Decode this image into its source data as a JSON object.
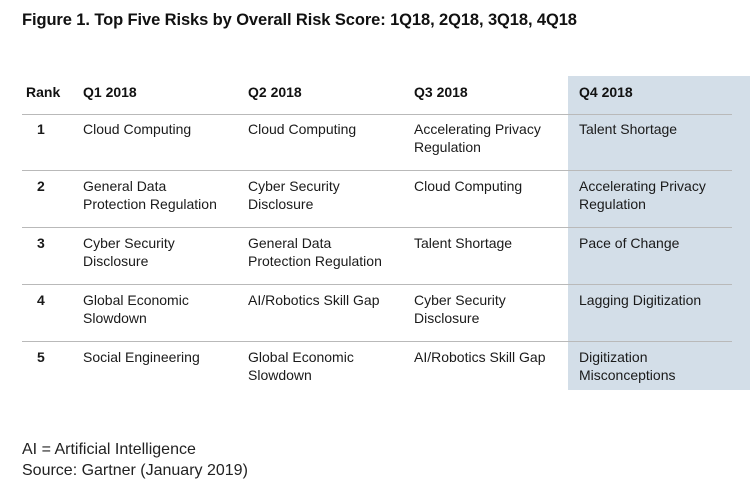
{
  "title": "Figure 1. Top Five Risks by Overall Risk Score: 1Q18, 2Q18, 3Q18, 4Q18",
  "table": {
    "headers": [
      "Rank",
      "Q1 2018",
      "Q2 2018",
      "Q3 2018",
      "Q4 2018"
    ],
    "highlight_color": "#d3dee8",
    "rows": [
      {
        "rank": "1",
        "cells": [
          "Cloud Computing",
          "Cloud Computing",
          "Accelerating Privacy Regulation",
          "Talent Shortage"
        ]
      },
      {
        "rank": "2",
        "cells": [
          "General Data Protection Regulation",
          "Cyber Security Disclosure",
          "Cloud Computing",
          "Accelerating Privacy Regulation"
        ]
      },
      {
        "rank": "3",
        "cells": [
          "Cyber Security Disclosure",
          "General Data Protection Regulation",
          "Talent Shortage",
          "Pace of Change"
        ]
      },
      {
        "rank": "4",
        "cells": [
          "Global Economic Slowdown",
          "AI/Robotics Skill Gap",
          "Cyber Security Disclosure",
          "Lagging Digitization"
        ]
      },
      {
        "rank": "5",
        "cells": [
          "Social Engineering",
          "Global Economic Slowdown",
          "AI/Robotics Skill Gap",
          "Digitization Misconceptions"
        ]
      }
    ]
  },
  "footnotes": {
    "abbreviation": "AI = Artificial Intelligence",
    "source": "Source: Gartner (January 2019)"
  }
}
